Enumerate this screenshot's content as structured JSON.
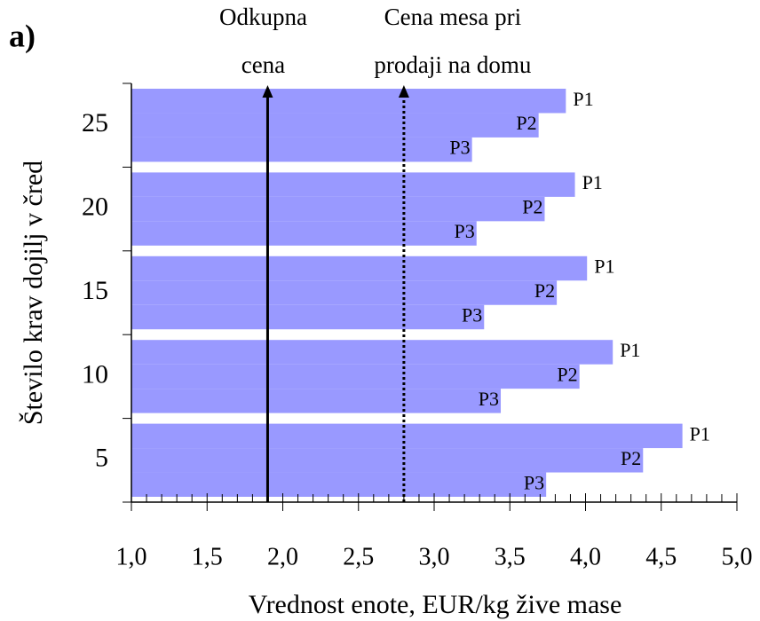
{
  "chart_data": {
    "type": "barh",
    "panel_label": "a)",
    "xlabel": "Vrednost enote, EUR/kg žive mase",
    "ylabel": "Število krav dojilj v čred",
    "categories": [
      "25",
      "20",
      "15",
      "10",
      "5"
    ],
    "series": [
      {
        "name": "P1",
        "color": "#9999ff",
        "values": [
          3.87,
          3.93,
          4.01,
          4.18,
          4.64
        ]
      },
      {
        "name": "P2",
        "color": "#9999ff",
        "values": [
          3.69,
          3.73,
          3.81,
          3.96,
          4.38
        ]
      },
      {
        "name": "P3",
        "color": "#9999ff",
        "values": [
          3.25,
          3.28,
          3.33,
          3.44,
          3.74
        ]
      }
    ],
    "xlim": [
      1,
      5
    ],
    "xticks": [
      {
        "value": 1,
        "label": "1,0"
      },
      {
        "value": 1.5,
        "label": "1,5"
      },
      {
        "value": 2,
        "label": "2,0"
      },
      {
        "value": 2.5,
        "label": "2,5"
      },
      {
        "value": 3,
        "label": "3,0"
      },
      {
        "value": 3.5,
        "label": "3,5"
      },
      {
        "value": 4,
        "label": "4,0"
      },
      {
        "value": 4.5,
        "label": "4,5"
      },
      {
        "value": 5,
        "label": "5,0"
      }
    ],
    "xminorticks": [
      1.1,
      1.2,
      1.3,
      1.4,
      1.6,
      1.7,
      1.8,
      1.9,
      2.1,
      2.2,
      2.3,
      2.4,
      2.6,
      2.7,
      2.8,
      2.9,
      3.1,
      3.2,
      3.3,
      3.4,
      3.6,
      3.7,
      3.8,
      3.9,
      4.1,
      4.2,
      4.3,
      4.4,
      4.6,
      4.7,
      4.8,
      4.9
    ],
    "reference_lines": [
      {
        "label_lines": [
          "Odkupna",
          "cena"
        ],
        "value": 1.9,
        "style": "solid"
      },
      {
        "label_lines": [
          "Cena mesa pri",
          "prodaji na domu"
        ],
        "value": 2.8,
        "style": "dotted"
      }
    ]
  }
}
